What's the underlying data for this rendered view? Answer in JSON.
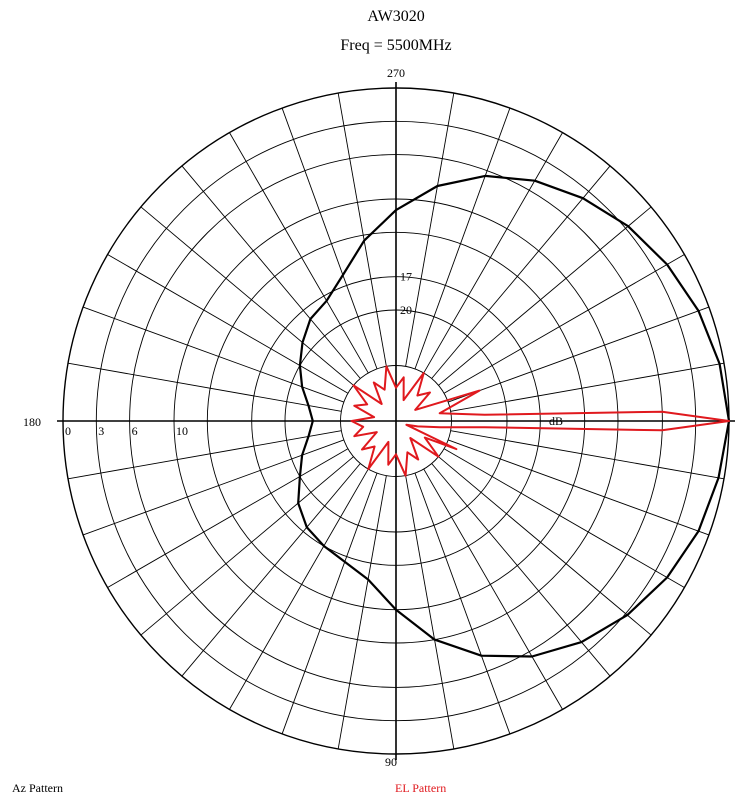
{
  "chart_data": {
    "type": "polar",
    "title": "AW3020",
    "subtitle": "Freq = 5500MHz",
    "angle_labels": {
      "top": "270",
      "left": "180",
      "bottom": "90",
      "right": ""
    },
    "radial_unit": "dB",
    "radial_tick_labels": [
      "0",
      "3",
      "6",
      "10",
      "17",
      "20"
    ],
    "radial_rings_db": [
      0,
      3,
      6,
      10,
      13,
      17,
      20,
      25
    ],
    "min_db": -30,
    "radial_labels_on_left_axis": [
      "0",
      "3",
      "6",
      "10"
    ],
    "radial_labels_on_upper_axis": [
      "17",
      "20"
    ],
    "angular_grid_step_deg": 10,
    "grid": true,
    "series": [
      {
        "name": "Az Pattern",
        "color": "#000000",
        "points_deg_db": [
          [
            0,
            0
          ],
          [
            10,
            -0.5
          ],
          [
            20,
            -1
          ],
          [
            30,
            -1.8
          ],
          [
            40,
            -2.8
          ],
          [
            50,
            -4
          ],
          [
            60,
            -5.5
          ],
          [
            70,
            -7.5
          ],
          [
            80,
            -10
          ],
          [
            90,
            -13
          ],
          [
            100,
            -15.5
          ],
          [
            110,
            -16.5
          ],
          [
            120,
            -17
          ],
          [
            130,
            -17.5
          ],
          [
            140,
            -18.5
          ],
          [
            150,
            -20
          ],
          [
            160,
            -21
          ],
          [
            170,
            -22
          ],
          [
            180,
            -22.5
          ],
          [
            190,
            -22
          ],
          [
            200,
            -21
          ],
          [
            210,
            -20
          ],
          [
            220,
            -19
          ],
          [
            230,
            -18
          ],
          [
            240,
            -17.5
          ],
          [
            250,
            -16
          ],
          [
            260,
            -13.5
          ],
          [
            270,
            -11
          ],
          [
            280,
            -8.5
          ],
          [
            290,
            -6.5
          ],
          [
            300,
            -5
          ],
          [
            310,
            -3.8
          ],
          [
            320,
            -2.7
          ],
          [
            330,
            -1.8
          ],
          [
            340,
            -1
          ],
          [
            350,
            -0.4
          ]
        ]
      },
      {
        "name": "EL Pattern",
        "color": "#e0191e",
        "points_deg_db": [
          [
            0,
            0
          ],
          [
            2,
            -6
          ],
          [
            4,
            -22
          ],
          [
            8,
            -26
          ],
          [
            14,
            -28
          ],
          [
            20,
            -29
          ],
          [
            25,
            -24
          ],
          [
            30,
            -27
          ],
          [
            40,
            -25
          ],
          [
            50,
            -28
          ],
          [
            60,
            -26
          ],
          [
            70,
            -27
          ],
          [
            80,
            -25
          ],
          [
            90,
            -27
          ],
          [
            100,
            -26
          ],
          [
            110,
            -28
          ],
          [
            120,
            -25
          ],
          [
            130,
            -27
          ],
          [
            140,
            -26
          ],
          [
            150,
            -28
          ],
          [
            160,
            -26
          ],
          [
            170,
            -27
          ],
          [
            180,
            -26
          ],
          [
            190,
            -28
          ],
          [
            200,
            -26
          ],
          [
            210,
            -27
          ],
          [
            220,
            -25
          ],
          [
            230,
            -28
          ],
          [
            240,
            -26
          ],
          [
            250,
            -27
          ],
          [
            260,
            -25
          ],
          [
            270,
            -27
          ],
          [
            280,
            -26
          ],
          [
            290,
            -28
          ],
          [
            300,
            -25
          ],
          [
            310,
            -27
          ],
          [
            320,
            -26
          ],
          [
            330,
            -28
          ],
          [
            340,
            -22
          ],
          [
            350,
            -26
          ],
          [
            356,
            -22
          ],
          [
            358,
            -6
          ]
        ]
      }
    ],
    "legend": [
      {
        "label": "Az Pattern",
        "color": "#000000"
      },
      {
        "label": "EL Pattern",
        "color": "#e0191e"
      }
    ]
  }
}
